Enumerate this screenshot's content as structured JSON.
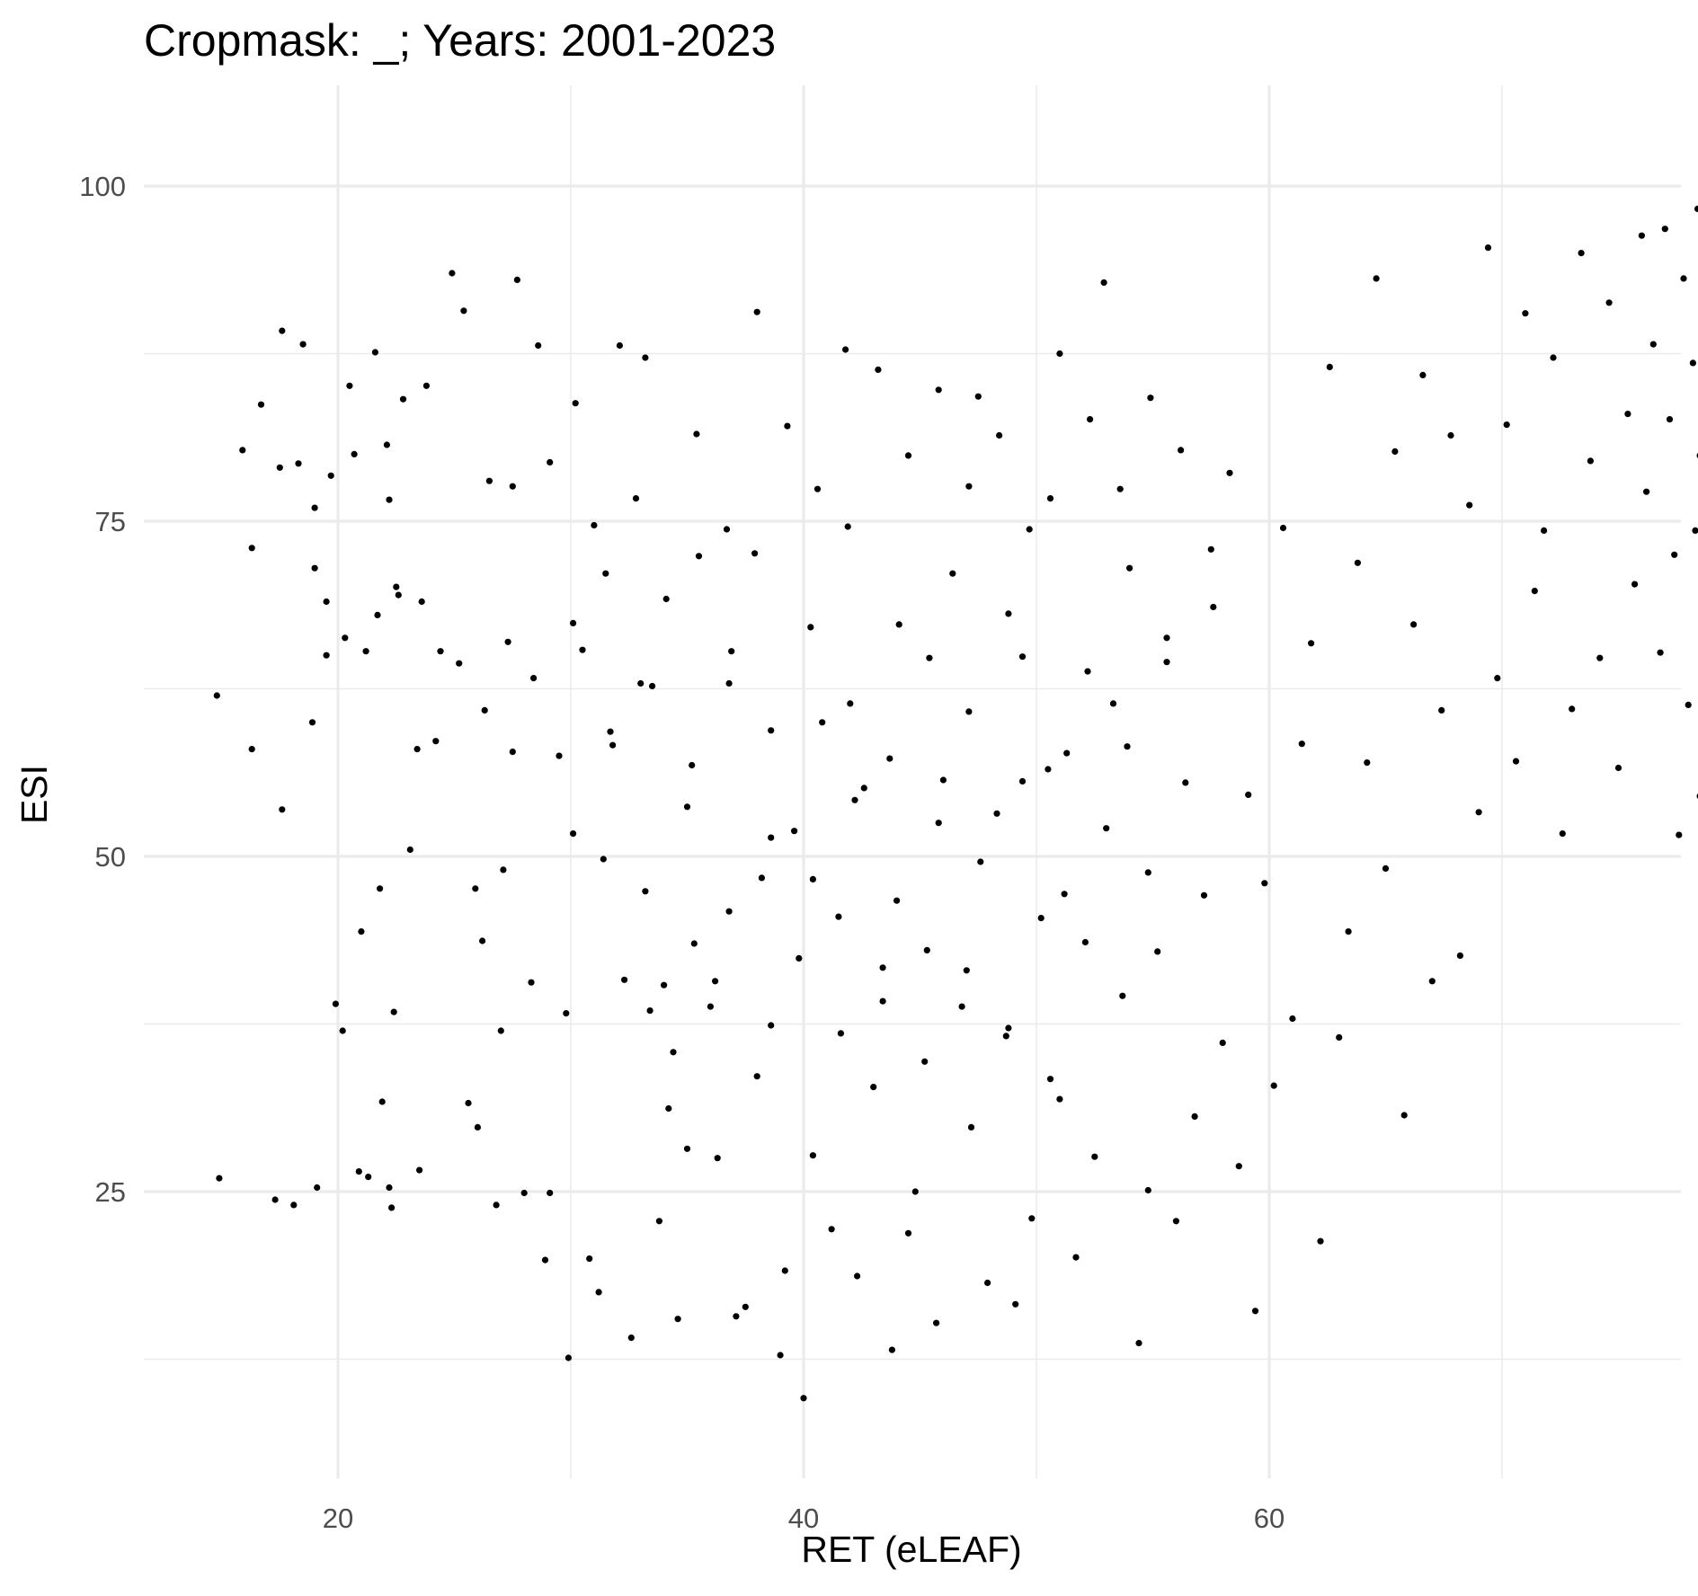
{
  "chart_data": {
    "type": "scatter",
    "title": "Cropmask: _; Years: 2001-2023",
    "xlabel": "RET (eLEAF)",
    "ylabel": "ESI",
    "xlim": [
      11.5,
      78.5
    ],
    "ylim": [
      5,
      106
    ],
    "x_major_ticks": [
      20,
      40,
      60
    ],
    "x_minor_ticks": [
      30,
      50,
      70
    ],
    "y_major_ticks": [
      25,
      50,
      75,
      100
    ],
    "y_minor_ticks": [
      12.5,
      37.5,
      62.5,
      87.5
    ],
    "x_tick_labels": [
      "20",
      "40",
      "60"
    ],
    "y_tick_labels": [
      "25",
      "50",
      "75",
      "100"
    ],
    "grid": true,
    "legend": "none",
    "colors": {
      "points": "#000000",
      "grid": "#ebebeb",
      "background": "#ffffff",
      "tick_text": "#4d4d4d"
    },
    "series": [
      {
        "points": [
          [
            14.8,
            62
          ],
          [
            14.9,
            26
          ],
          [
            15.9,
            80.3
          ],
          [
            16.3,
            58
          ],
          [
            16.3,
            73
          ],
          [
            16.7,
            83.7
          ],
          [
            17.3,
            24.4
          ],
          [
            17.5,
            79
          ],
          [
            17.6,
            53.5
          ],
          [
            17.6,
            89.2
          ],
          [
            18.1,
            24
          ],
          [
            18.3,
            79.3
          ],
          [
            18.5,
            88.2
          ],
          [
            18.9,
            60
          ],
          [
            19,
            76
          ],
          [
            19,
            71.5
          ],
          [
            19.1,
            25.3
          ],
          [
            19.5,
            65
          ],
          [
            19.5,
            69
          ],
          [
            19.7,
            78.4
          ],
          [
            19.9,
            39
          ],
          [
            20.2,
            37
          ],
          [
            20.3,
            66.3
          ],
          [
            20.5,
            85.1
          ],
          [
            20.7,
            80
          ],
          [
            20.9,
            26.5
          ],
          [
            21,
            44.4
          ],
          [
            21.2,
            65.3
          ],
          [
            21.3,
            26.1
          ],
          [
            21.6,
            87.6
          ],
          [
            21.7,
            68
          ],
          [
            21.8,
            47.6
          ],
          [
            21.9,
            31.7
          ],
          [
            22.1,
            80.7
          ],
          [
            22.2,
            25.3
          ],
          [
            22.2,
            76.6
          ],
          [
            22.3,
            23.8
          ],
          [
            22.4,
            38.4
          ],
          [
            22.5,
            70.1
          ],
          [
            22.6,
            69.5
          ],
          [
            22.8,
            84.1
          ],
          [
            23.1,
            50.5
          ],
          [
            23.4,
            58
          ],
          [
            23.5,
            26.6
          ],
          [
            23.6,
            69
          ],
          [
            23.8,
            85.1
          ],
          [
            24.2,
            58.6
          ],
          [
            24.4,
            65.3
          ],
          [
            24.9,
            93.5
          ],
          [
            25.2,
            64.4
          ],
          [
            25.4,
            90.7
          ],
          [
            25.6,
            31.6
          ],
          [
            25.9,
            47.6
          ],
          [
            26,
            29.8
          ],
          [
            26.2,
            43.7
          ],
          [
            26.3,
            60.9
          ],
          [
            26.5,
            78
          ],
          [
            26.8,
            24
          ],
          [
            27,
            37
          ],
          [
            27.1,
            49
          ],
          [
            27.3,
            66
          ],
          [
            27.5,
            57.8
          ],
          [
            27.7,
            93
          ],
          [
            28,
            24.9
          ],
          [
            28.3,
            40.6
          ],
          [
            28.6,
            88.1
          ],
          [
            28.9,
            19.9
          ],
          [
            29.1,
            24.9
          ],
          [
            29.5,
            57.5
          ],
          [
            29.8,
            38.3
          ],
          [
            29.9,
            12.6
          ],
          [
            30.1,
            51.7
          ],
          [
            30.5,
            65.4
          ],
          [
            30.8,
            20
          ],
          [
            31,
            74.7
          ],
          [
            31.2,
            17.5
          ],
          [
            31.4,
            49.8
          ],
          [
            31.7,
            59.3
          ],
          [
            32.1,
            88.1
          ],
          [
            32.3,
            40.8
          ],
          [
            32.6,
            14.1
          ],
          [
            33,
            62.9
          ],
          [
            33.2,
            87.2
          ],
          [
            33.4,
            38.5
          ],
          [
            33.8,
            22.8
          ],
          [
            34,
            40.4
          ],
          [
            34.2,
            31.2
          ],
          [
            34.6,
            15.5
          ],
          [
            35,
            28.2
          ],
          [
            35.3,
            43.5
          ],
          [
            35.5,
            72.4
          ],
          [
            36,
            38.8
          ],
          [
            36.3,
            27.5
          ],
          [
            36.8,
            62.9
          ],
          [
            37.1,
            15.7
          ],
          [
            37.5,
            16.4
          ],
          [
            37.9,
            72.6
          ],
          [
            38.2,
            48.4
          ],
          [
            38.6,
            37.4
          ],
          [
            39,
            12.8
          ],
          [
            39.2,
            19.1
          ],
          [
            39.6,
            51.9
          ],
          [
            40,
            9.6
          ],
          [
            40.4,
            27.7
          ],
          [
            40.8,
            60
          ],
          [
            41.2,
            22.2
          ],
          [
            41.5,
            45.5
          ],
          [
            41.8,
            87.8
          ],
          [
            42.3,
            18.7
          ],
          [
            42.6,
            55.1
          ],
          [
            43,
            32.8
          ],
          [
            43.4,
            41.7
          ],
          [
            43.8,
            13.2
          ],
          [
            44.1,
            67.3
          ],
          [
            44.5,
            21.9
          ],
          [
            44.8,
            25
          ],
          [
            45.3,
            43
          ],
          [
            45.7,
            15.2
          ],
          [
            46,
            55.7
          ],
          [
            46.4,
            71.1
          ],
          [
            46.8,
            38.8
          ],
          [
            47.2,
            29.8
          ],
          [
            47.5,
            84.3
          ],
          [
            47.9,
            18.2
          ],
          [
            48.3,
            53.2
          ],
          [
            48.7,
            36.6
          ],
          [
            49.1,
            16.6
          ],
          [
            49.4,
            64.9
          ],
          [
            49.8,
            23
          ],
          [
            50.2,
            45.4
          ],
          [
            50.6,
            76.7
          ],
          [
            51,
            31.9
          ],
          [
            51.3,
            57.7
          ],
          [
            51.7,
            20.1
          ],
          [
            52.1,
            43.6
          ],
          [
            52.5,
            27.6
          ],
          [
            52.9,
            92.8
          ],
          [
            53.3,
            61.4
          ],
          [
            53.7,
            39.6
          ],
          [
            54,
            71.5
          ],
          [
            54.4,
            13.7
          ],
          [
            54.8,
            25.1
          ],
          [
            55.2,
            42.9
          ],
          [
            55.6,
            64.5
          ],
          [
            56,
            22.8
          ],
          [
            56.4,
            55.5
          ],
          [
            56.8,
            30.6
          ],
          [
            57.2,
            47.1
          ],
          [
            57.6,
            68.6
          ],
          [
            58,
            36.1
          ],
          [
            58.3,
            78.6
          ],
          [
            58.7,
            26.9
          ],
          [
            59.1,
            54.6
          ],
          [
            59.4,
            16.1
          ],
          [
            59.8,
            48
          ],
          [
            60.2,
            32.9
          ],
          [
            60.6,
            74.5
          ],
          [
            61,
            37.9
          ],
          [
            61.4,
            58.4
          ],
          [
            61.8,
            65.9
          ],
          [
            62.2,
            21.3
          ],
          [
            62.6,
            86.5
          ],
          [
            63,
            36.5
          ],
          [
            63.4,
            44.4
          ],
          [
            63.8,
            71.9
          ],
          [
            64.2,
            57
          ],
          [
            64.6,
            93.1
          ],
          [
            65,
            49.1
          ],
          [
            65.4,
            80.2
          ],
          [
            65.8,
            30.7
          ],
          [
            66.2,
            67.3
          ],
          [
            66.6,
            85.9
          ],
          [
            67,
            40.7
          ],
          [
            67.4,
            60.9
          ],
          [
            67.8,
            81.4
          ],
          [
            68.2,
            42.6
          ],
          [
            68.6,
            76.2
          ],
          [
            69,
            53.3
          ],
          [
            69.4,
            95.4
          ],
          [
            69.8,
            63.3
          ],
          [
            70.2,
            82.2
          ],
          [
            70.6,
            57.1
          ],
          [
            71,
            90.5
          ],
          [
            71.4,
            69.8
          ],
          [
            71.8,
            74.3
          ],
          [
            72.2,
            87.2
          ],
          [
            72.6,
            51.7
          ],
          [
            73,
            61
          ],
          [
            73.4,
            95
          ],
          [
            73.8,
            79.5
          ],
          [
            74.2,
            64.8
          ],
          [
            74.6,
            91.3
          ],
          [
            75,
            56.6
          ],
          [
            75.4,
            83
          ],
          [
            75.7,
            70.3
          ],
          [
            76,
            96.3
          ],
          [
            76.2,
            77.2
          ],
          [
            76.5,
            88.2
          ],
          [
            76.8,
            65.2
          ],
          [
            77,
            96.8
          ],
          [
            77.2,
            82.6
          ],
          [
            77.4,
            72.5
          ],
          [
            77.6,
            51.6
          ],
          [
            77.8,
            93.1
          ],
          [
            78,
            61.3
          ],
          [
            78.2,
            86.8
          ],
          [
            78.3,
            74.3
          ],
          [
            78.4,
            98.3
          ],
          [
            78.5,
            79.9
          ],
          [
            78.5,
            54.5
          ],
          [
            27.5,
            77.6
          ],
          [
            29.1,
            79.4
          ],
          [
            30.2,
            83.8
          ],
          [
            31.5,
            71.1
          ],
          [
            32.8,
            76.7
          ],
          [
            34.1,
            69.2
          ],
          [
            35.4,
            81.5
          ],
          [
            36.7,
            74.4
          ],
          [
            38,
            90.6
          ],
          [
            39.3,
            82.1
          ],
          [
            40.6,
            77.4
          ],
          [
            41.9,
            74.6
          ],
          [
            43.2,
            86.3
          ],
          [
            44.5,
            79.9
          ],
          [
            45.8,
            84.8
          ],
          [
            47.1,
            77.6
          ],
          [
            48.4,
            81.4
          ],
          [
            49.7,
            74.4
          ],
          [
            51,
            87.5
          ],
          [
            52.3,
            82.6
          ],
          [
            53.6,
            77.4
          ],
          [
            54.9,
            84.2
          ],
          [
            56.2,
            80.3
          ],
          [
            57.5,
            72.9
          ],
          [
            28.4,
            63.3
          ],
          [
            30.1,
            67.4
          ],
          [
            31.8,
            58.3
          ],
          [
            33.5,
            62.7
          ],
          [
            35.2,
            56.8
          ],
          [
            36.9,
            65.3
          ],
          [
            38.6,
            59.4
          ],
          [
            40.3,
            67.1
          ],
          [
            42,
            61.4
          ],
          [
            43.7,
            57.3
          ],
          [
            45.4,
            64.8
          ],
          [
            47.1,
            60.8
          ],
          [
            48.8,
            68.1
          ],
          [
            50.5,
            56.5
          ],
          [
            52.2,
            63.8
          ],
          [
            53.9,
            58.2
          ],
          [
            55.6,
            66.3
          ],
          [
            33.2,
            47.4
          ],
          [
            35,
            53.7
          ],
          [
            36.8,
            45.9
          ],
          [
            38.6,
            51.4
          ],
          [
            40.4,
            48.3
          ],
          [
            42.2,
            54.2
          ],
          [
            44,
            46.7
          ],
          [
            45.8,
            52.5
          ],
          [
            47.6,
            49.6
          ],
          [
            49.4,
            55.6
          ],
          [
            51.2,
            47.2
          ],
          [
            53,
            52.1
          ],
          [
            54.8,
            48.8
          ],
          [
            34.4,
            35.4
          ],
          [
            36.2,
            40.7
          ],
          [
            38,
            33.6
          ],
          [
            39.8,
            42.4
          ],
          [
            41.6,
            36.8
          ],
          [
            43.4,
            39.2
          ],
          [
            45.2,
            34.7
          ],
          [
            47,
            41.5
          ],
          [
            48.8,
            37.2
          ],
          [
            50.6,
            33.4
          ]
        ]
      }
    ]
  }
}
